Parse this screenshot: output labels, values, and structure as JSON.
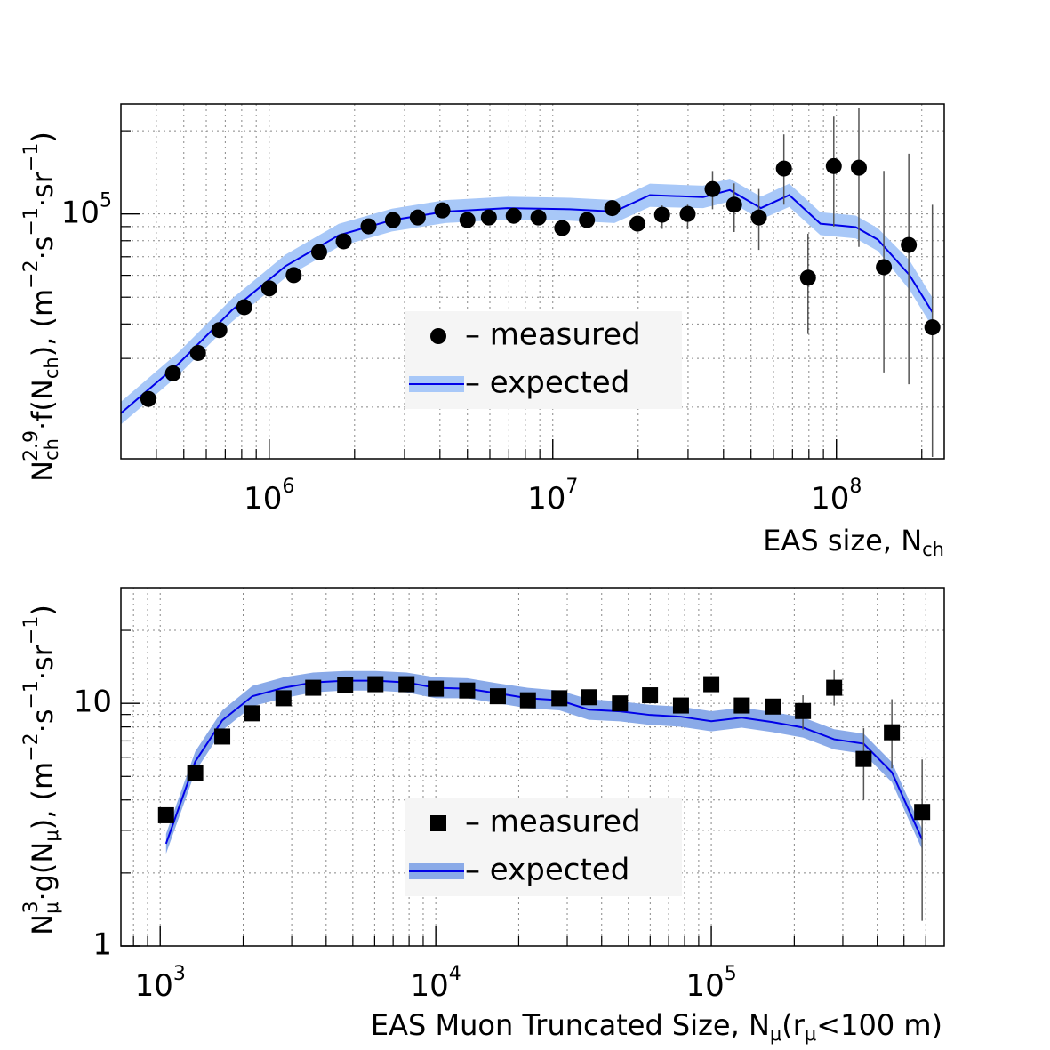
{
  "chart_data": [
    {
      "type": "scatter",
      "xlog": true,
      "ylog": true,
      "grid": true,
      "legend": "bottom-center",
      "xlabel": [
        "EAS size, N",
        "ch"
      ],
      "ylabel": [
        "N",
        "ch",
        "2.9",
        "·f(N",
        "ch",
        "),  (m",
        "−2",
        "·s",
        "−1",
        "·sr",
        "−1",
        ")"
      ],
      "xlim": [
        300000,
        240000000
      ],
      "ylim": [
        13000,
        250000
      ],
      "xticks": [
        {
          "value": 1000000,
          "label": "10",
          "exp": "6"
        },
        {
          "value": 10000000,
          "label": "10",
          "exp": "7"
        },
        {
          "value": 100000000,
          "label": "10",
          "exp": "8"
        }
      ],
      "yticks": [
        {
          "value": 100000,
          "label": "10",
          "exp": "5"
        }
      ],
      "series": [
        {
          "name": "– measured",
          "type": "points",
          "marker": "circle",
          "color": "#000000",
          "x": [
            375000,
            458000,
            561000,
            667000,
            817000,
            1000000,
            1220000,
            1500000,
            1830000,
            2240000,
            2730000,
            3340000,
            4080000,
            5000000,
            5950000,
            7280000,
            8900000,
            10800000,
            13200000,
            16200000,
            19900000,
            24300000,
            29900000,
            36600000,
            43600000,
            53300000,
            65300000,
            79400000,
            97900000,
            120000000,
            147000000,
            180000000,
            218000000
          ],
          "values": [
            21400,
            26500,
            31400,
            38000,
            46000,
            53800,
            60100,
            72800,
            79600,
            90200,
            95000,
            97100,
            103000,
            95000,
            97100,
            98500,
            97100,
            88900,
            95000,
            105000,
            92200,
            99300,
            100000,
            123000,
            108000,
            97100,
            146000,
            58800,
            149000,
            147000,
            64200,
            77200,
            38900
          ],
          "err_low": [
            null,
            null,
            null,
            null,
            null,
            null,
            null,
            null,
            null,
            null,
            null,
            null,
            null,
            null,
            null,
            null,
            null,
            null,
            null,
            null,
            null,
            11000,
            12000,
            19000,
            22000,
            23000,
            38000,
            22000,
            59000,
            71000,
            37500,
            53000,
            25700
          ],
          "err_high": [
            null,
            null,
            null,
            null,
            null,
            null,
            null,
            null,
            null,
            null,
            null,
            null,
            null,
            null,
            null,
            null,
            null,
            null,
            null,
            null,
            null,
            8000,
            8000,
            20000,
            21000,
            26000,
            48000,
            26000,
            76000,
            94000,
            79000,
            88000,
            69000
          ]
        },
        {
          "name": "– expected",
          "type": "line",
          "color": "#0000e8",
          "band_color": "#a8c8f8",
          "x": [
            300000,
            479000,
            738000,
            1140000,
            1760000,
            2710000,
            4180000,
            6920000,
            11500000,
            16500000,
            22000000,
            33900000,
            42100000,
            54200000,
            68200000,
            87800000,
            117000000,
            140000000,
            181000000,
            218000000
          ],
          "values": [
            19000,
            28700,
            44800,
            64700,
            83700,
            95000,
            102000,
            105000,
            104000,
            102000,
            117000,
            115000,
            122000,
            105000,
            117000,
            92200,
            89600,
            80700,
            60100,
            44100
          ],
          "band_low": [
            17300,
            26100,
            40700,
            58800,
            76100,
            86400,
            92700,
            95500,
            94500,
            92700,
            106000,
            105000,
            111000,
            95500,
            106000,
            83800,
            81500,
            73400,
            53200,
            39000
          ],
          "band_high": [
            20900,
            31600,
            49300,
            71200,
            92100,
            104500,
            112200,
            115500,
            114400,
            112200,
            128700,
            126500,
            134200,
            115500,
            128700,
            101400,
            98600,
            88800,
            67900,
            49800
          ]
        }
      ]
    },
    {
      "type": "scatter",
      "xlog": true,
      "ylog": true,
      "grid": true,
      "legend": "bottom-center",
      "xlabel": [
        "EAS Muon Truncated Size, N",
        "μ",
        "(r",
        "μ",
        "<100 m)"
      ],
      "ylabel": [
        "N",
        "μ",
        "3",
        "·g(N",
        "μ",
        "),  (m",
        "−2",
        "·s",
        "−1",
        "·sr",
        "−1",
        ")"
      ],
      "xlim": [
        720,
        700000
      ],
      "ylim": [
        1,
        30
      ],
      "xticks": [
        {
          "value": 1000,
          "label": "10",
          "exp": "3"
        },
        {
          "value": 10000,
          "label": "10",
          "exp": "4"
        },
        {
          "value": 100000,
          "label": "10",
          "exp": "5"
        }
      ],
      "yticks": [
        1,
        10
      ],
      "series": [
        {
          "name": "– measured",
          "type": "points",
          "marker": "square",
          "color": "#000000",
          "x": [
            1050,
            1340,
            1680,
            2160,
            2800,
            3590,
            4690,
            6040,
            7830,
            10000,
            13000,
            16800,
            21600,
            28100,
            35900,
            46600,
            59900,
            77600,
            100000,
            129000,
            167000,
            215000,
            279000,
            357000,
            452000,
            582000
          ],
          "values": [
            3.46,
            5.15,
            7.3,
            9.1,
            10.5,
            11.6,
            11.9,
            12.0,
            12.0,
            11.5,
            11.3,
            10.7,
            10.3,
            10.5,
            10.6,
            10.0,
            10.8,
            9.8,
            12.0,
            9.8,
            9.7,
            9.3,
            11.6,
            5.9,
            7.6,
            3.57
          ],
          "err_low": [
            null,
            null,
            null,
            null,
            null,
            null,
            null,
            null,
            null,
            null,
            null,
            null,
            null,
            null,
            null,
            null,
            null,
            null,
            null,
            null,
            null,
            1.5,
            1.8,
            1.9,
            2.2,
            2.3
          ],
          "err_high": [
            null,
            null,
            null,
            null,
            null,
            null,
            null,
            null,
            null,
            null,
            null,
            null,
            null,
            null,
            null,
            null,
            null,
            null,
            null,
            null,
            null,
            1.5,
            2.1,
            2.0,
            2.8,
            2.3
          ]
        },
        {
          "name": "– expected",
          "type": "line",
          "color": "#0000e8",
          "band_color": "#8aaae8",
          "x": [
            1050,
            1340,
            1680,
            2160,
            2800,
            3590,
            4690,
            6040,
            7830,
            10000,
            13000,
            16800,
            21600,
            28100,
            35900,
            46600,
            59900,
            77600,
            100000,
            129000,
            167000,
            215000,
            279000,
            357000,
            452000,
            582000
          ],
          "values": [
            2.64,
            5.75,
            8.51,
            10.7,
            11.6,
            12.2,
            12.4,
            12.4,
            12.2,
            11.6,
            11.5,
            11.0,
            10.5,
            10.3,
            9.42,
            9.27,
            8.96,
            8.81,
            8.44,
            8.73,
            8.37,
            7.95,
            7.11,
            6.82,
            5.2,
            2.75
          ],
          "band_low": [
            2.4,
            5.23,
            7.74,
            9.73,
            10.5,
            11.1,
            11.3,
            11.3,
            11.1,
            10.5,
            10.5,
            10.0,
            9.55,
            9.36,
            8.56,
            8.43,
            8.15,
            8.01,
            7.67,
            7.94,
            7.61,
            7.23,
            6.46,
            6.2,
            4.73,
            2.5
          ],
          "band_high": [
            2.9,
            6.33,
            9.36,
            11.8,
            12.8,
            13.4,
            13.6,
            13.6,
            13.4,
            12.8,
            12.7,
            12.1,
            11.6,
            11.3,
            10.4,
            10.2,
            9.86,
            9.69,
            9.28,
            9.6,
            9.21,
            8.75,
            7.82,
            7.5,
            5.72,
            3.03
          ]
        }
      ]
    }
  ]
}
